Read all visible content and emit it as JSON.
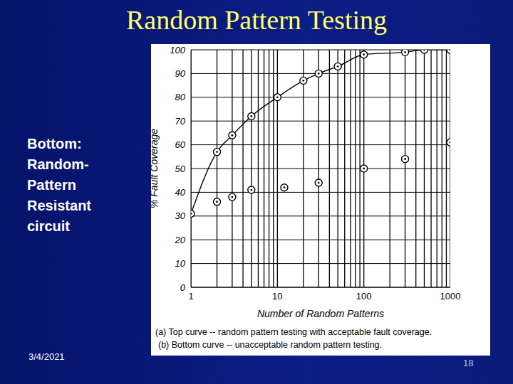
{
  "slide": {
    "title": "Random Pattern Testing",
    "side_text": [
      "Bottom:",
      "Random-",
      "Pattern",
      "Resistant",
      "circuit"
    ],
    "date": "3/4/2021",
    "page": "18"
  },
  "chart_data": {
    "type": "line",
    "x_label": "Number of Random Patterns",
    "y_label": "% Fault Coverage",
    "annotations": [
      "(a) Top curve -- random pattern testing with acceptable fault coverage.",
      "(b) Bottom curve -- unacceptable random pattern testing."
    ],
    "log": "x",
    "grid": true,
    "xlim": [
      1,
      1000
    ],
    "xticks": [
      1,
      10,
      100,
      1000
    ],
    "ylim": [
      0,
      100
    ],
    "yticks": [
      0,
      10,
      20,
      30,
      40,
      50,
      60,
      70,
      80,
      90,
      100
    ],
    "series": [
      {
        "color": "#000000",
        "marker": "circle",
        "line_style": "solid",
        "x": [
          1,
          2,
          3,
          5,
          10,
          20,
          30,
          50,
          100,
          300,
          500,
          1000
        ],
        "values": [
          31,
          57,
          64,
          72,
          80,
          87,
          90,
          93,
          98,
          99,
          100,
          100
        ]
      },
      {
        "color": "#000000",
        "marker": "circle",
        "line_style": "none",
        "x": [
          2,
          3,
          5,
          12,
          30,
          100,
          300,
          1000
        ],
        "values": [
          36,
          38,
          41,
          42,
          44,
          50,
          54,
          61
        ]
      }
    ]
  }
}
